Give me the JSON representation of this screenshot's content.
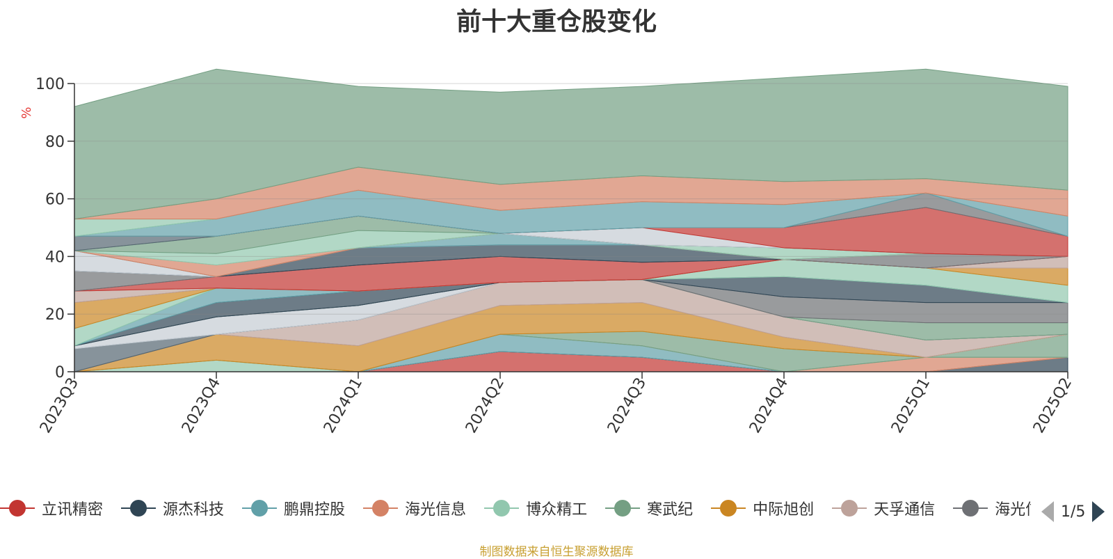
{
  "chart_data": {
    "type": "area",
    "stacked": true,
    "title": "前十大重仓股变化",
    "ylabel": "%",
    "ylim": [
      0,
      100
    ],
    "yticks": [
      0,
      20,
      40,
      60,
      80,
      100
    ],
    "grid": true,
    "legend_position": "bottom",
    "categories": [
      "2023Q3",
      "2023Q4",
      "2024Q1",
      "2024Q2",
      "2024Q3",
      "2024Q4",
      "2025Q1",
      "2025Q2"
    ],
    "layers": [
      {
        "color": "#c23531",
        "values": [
          0,
          0,
          0,
          7,
          5,
          0,
          0,
          0
        ]
      },
      {
        "color": "#2f4554",
        "values": [
          0,
          0,
          0,
          0,
          0,
          0,
          0,
          5
        ]
      },
      {
        "color": "#61a0a8",
        "values": [
          0,
          0,
          0,
          6,
          4,
          0,
          0,
          0
        ]
      },
      {
        "color": "#d48265",
        "values": [
          0,
          0,
          0,
          0,
          0,
          0,
          5,
          0
        ]
      },
      {
        "color": "#91c7ae",
        "values": [
          0,
          4,
          0,
          0,
          0,
          0,
          0,
          0
        ]
      },
      {
        "color": "#749f83",
        "values": [
          0,
          0,
          0,
          0,
          5,
          8,
          0,
          8
        ]
      },
      {
        "color": "#ca8622",
        "values": [
          0,
          9,
          9,
          10,
          10,
          4,
          0,
          0
        ]
      },
      {
        "color": "#bda29a",
        "values": [
          0,
          0,
          9,
          8,
          8,
          7,
          6,
          0
        ]
      },
      {
        "color": "#6e7074",
        "values": [
          0,
          0,
          0,
          0,
          0,
          0,
          0,
          0
        ]
      },
      {
        "color": "#546570",
        "values": [
          8,
          0,
          0,
          0,
          0,
          0,
          0,
          0
        ]
      },
      {
        "color": "#c4ccd3",
        "values": [
          1,
          6,
          5,
          0,
          0,
          0,
          0,
          0
        ]
      },
      {
        "color": "#749f83",
        "values": [
          0,
          0,
          0,
          0,
          0,
          0,
          6,
          4
        ]
      },
      {
        "color": "#6e7074",
        "values": [
          0,
          0,
          0,
          0,
          0,
          7,
          7,
          7
        ]
      },
      {
        "color": "#2f4554",
        "values": [
          0,
          5,
          5,
          0,
          0,
          7,
          6,
          0
        ]
      },
      {
        "color": "#61a0a8",
        "values": [
          0,
          5,
          0,
          0,
          0,
          0,
          0,
          0
        ]
      },
      {
        "color": "#91c7ae",
        "values": [
          6,
          0,
          0,
          0,
          0,
          6,
          6,
          6
        ]
      },
      {
        "color": "#ca8622",
        "values": [
          9,
          0,
          0,
          0,
          0,
          0,
          0,
          6
        ]
      },
      {
        "color": "#bda29a",
        "values": [
          4,
          0,
          0,
          0,
          0,
          0,
          0,
          4
        ]
      },
      {
        "color": "#c23531",
        "values": [
          0,
          4,
          9,
          9,
          6,
          0,
          0,
          0
        ]
      },
      {
        "color": "#6e7074",
        "values": [
          7,
          0,
          0,
          0,
          0,
          0,
          5,
          0
        ]
      },
      {
        "color": "#2f4554",
        "values": [
          0,
          0,
          6,
          4,
          6,
          0,
          0,
          0
        ]
      },
      {
        "color": "#c4ccd3",
        "values": [
          7,
          0,
          0,
          0,
          0,
          0,
          0,
          0
        ]
      },
      {
        "color": "#61a0a8",
        "values": [
          0,
          0,
          0,
          4,
          0,
          0,
          0,
          0
        ]
      },
      {
        "color": "#d48265",
        "values": [
          0,
          4,
          0,
          0,
          0,
          0,
          0,
          0
        ]
      },
      {
        "color": "#91c7ae",
        "values": [
          0,
          4,
          6,
          0,
          0,
          4,
          0,
          0
        ]
      },
      {
        "color": "#749f83",
        "values": [
          0,
          6,
          5,
          0,
          0,
          0,
          0,
          0
        ]
      },
      {
        "color": "#546570",
        "values": [
          5,
          0,
          0,
          0,
          0,
          0,
          0,
          0
        ]
      },
      {
        "color": "#c4ccd3",
        "values": [
          0,
          0,
          0,
          0,
          6,
          0,
          0,
          0
        ]
      },
      {
        "color": "#c23531",
        "values": [
          0,
          0,
          0,
          0,
          0,
          7,
          16,
          7
        ]
      },
      {
        "color": "#6e7074",
        "values": [
          0,
          0,
          0,
          0,
          0,
          0,
          5,
          0
        ]
      },
      {
        "color": "#61a0a8",
        "values": [
          0,
          6,
          9,
          8,
          9,
          8,
          0,
          7
        ]
      },
      {
        "color": "#91c7ae",
        "values": [
          6,
          0,
          0,
          0,
          0,
          0,
          0,
          0
        ]
      },
      {
        "color": "#d48265",
        "values": [
          0,
          7,
          8,
          9,
          9,
          8,
          5,
          9
        ]
      },
      {
        "color": "#749f83",
        "values": [
          39,
          45,
          28,
          32,
          31,
          36,
          38,
          36
        ]
      }
    ],
    "legend": [
      {
        "name": "立讯精密",
        "color": "#c23531"
      },
      {
        "name": "源杰科技",
        "color": "#2f4554"
      },
      {
        "name": "鹏鼎控股",
        "color": "#61a0a8"
      },
      {
        "name": "海光信息",
        "color": "#d48265"
      },
      {
        "name": "博众精工",
        "color": "#91c7ae"
      },
      {
        "name": "寒武纪",
        "color": "#749f83"
      },
      {
        "name": "中际旭创",
        "color": "#ca8622"
      },
      {
        "name": "天孚通信",
        "color": "#bda29a"
      },
      {
        "name": "海光信息",
        "color": "#6e7074"
      }
    ],
    "legend_page": "1/5",
    "source_note": "制图数据来自恒生聚源数据库"
  }
}
